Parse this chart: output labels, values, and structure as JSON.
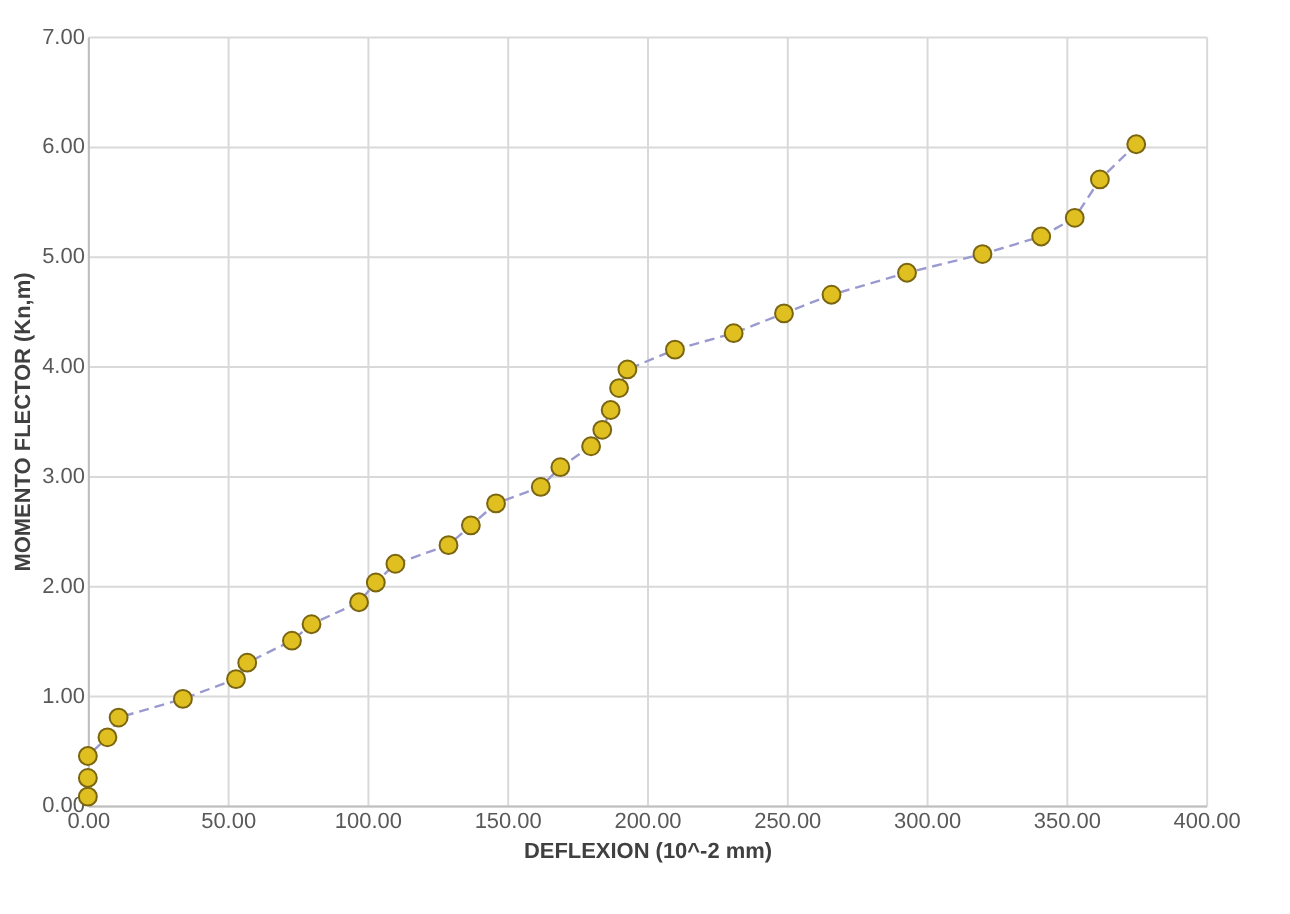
{
  "chart_data": {
    "type": "line",
    "xlabel": "DEFLEXION (10^-2 mm)",
    "ylabel": "MOMENTO FLECTOR (Kn,m)",
    "x": [
      0,
      0,
      0,
      7,
      11,
      34,
      53,
      57,
      73,
      80,
      97,
      103,
      110,
      129,
      137,
      146,
      162,
      169,
      180,
      184,
      187,
      190,
      193,
      210,
      231,
      249,
      266,
      293,
      320,
      341,
      353,
      362,
      375
    ],
    "series": [
      {
        "color": "#e0c020",
        "values": [
          0.08,
          0.25,
          0.45,
          0.62,
          0.8,
          0.97,
          1.15,
          1.3,
          1.5,
          1.65,
          1.85,
          2.03,
          2.2,
          2.37,
          2.55,
          2.75,
          2.9,
          3.08,
          3.27,
          3.42,
          3.6,
          3.8,
          3.97,
          4.15,
          4.3,
          4.48,
          4.65,
          4.85,
          5.02,
          5.18,
          5.35,
          5.7,
          6.02
        ]
      }
    ],
    "xlim": [
      0,
      400
    ],
    "xticks": [
      {
        "value": 0,
        "label": "0.00"
      },
      {
        "value": 50,
        "label": "50.00"
      },
      {
        "value": 100,
        "label": "100.00"
      },
      {
        "value": 150,
        "label": "150.00"
      },
      {
        "value": 200,
        "label": "200.00"
      },
      {
        "value": 250,
        "label": "250.00"
      },
      {
        "value": 300,
        "label": "300.00"
      },
      {
        "value": 350,
        "label": "350.00"
      },
      {
        "value": 400,
        "label": "400.00"
      }
    ],
    "ylim": [
      0,
      7
    ],
    "yticks": [
      {
        "value": 0,
        "label": "0.00"
      },
      {
        "value": 1,
        "label": "1.00"
      },
      {
        "value": 2,
        "label": "2.00"
      },
      {
        "value": 3,
        "label": "3.00"
      },
      {
        "value": 4,
        "label": "4.00"
      },
      {
        "value": 5,
        "label": "5.00"
      },
      {
        "value": 6,
        "label": "6.00"
      },
      {
        "value": 7,
        "label": "7.00"
      }
    ],
    "grid": true,
    "marker": "circle",
    "line_style": "dashed"
  }
}
